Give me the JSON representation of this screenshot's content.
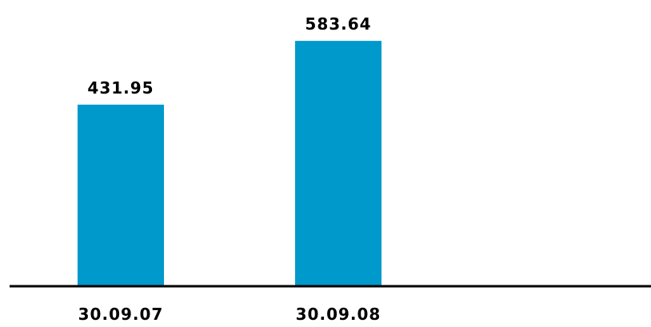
{
  "chart_data": {
    "type": "bar",
    "categories": [
      "30.09.07",
      "30.09.08"
    ],
    "values": [
      431.95,
      583.64
    ],
    "value_labels": [
      "431.95",
      "583.64"
    ],
    "title": "",
    "xlabel": "",
    "ylabel": "",
    "ylim": [
      0,
      660
    ],
    "grid": false,
    "legend": "none",
    "bar_color": "#0099cc",
    "axis_color": "#000000"
  }
}
